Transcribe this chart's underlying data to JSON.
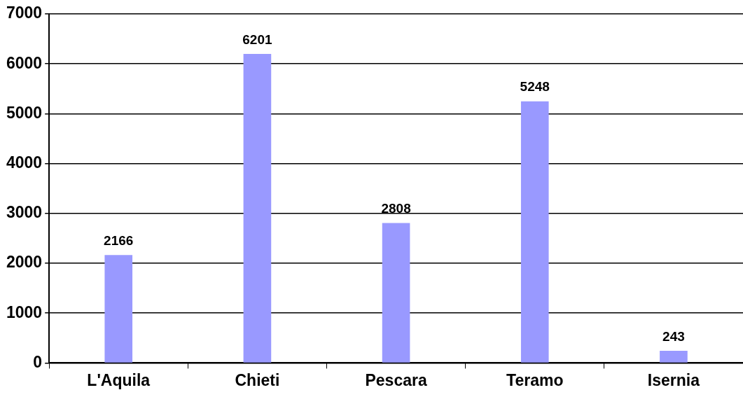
{
  "chart_data": {
    "type": "bar",
    "categories": [
      "L'Aquila",
      "Chieti",
      "Pescara",
      "Teramo",
      "Isernia"
    ],
    "values": [
      2166,
      6201,
      2808,
      5248,
      243
    ],
    "color": "#9999ff",
    "ylim": [
      0,
      7000
    ],
    "yticks": [
      0,
      1000,
      2000,
      3000,
      4000,
      5000,
      6000,
      7000
    ],
    "grid": "y",
    "data_labels": true
  }
}
